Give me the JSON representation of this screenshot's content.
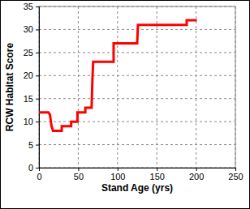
{
  "chart_data": {
    "type": "line",
    "x_label": "Stand Age (yrs)",
    "y_label": "RCW Habitat Score",
    "x": [
      0,
      12,
      14,
      16,
      18,
      29,
      29,
      41,
      41,
      49,
      49,
      59,
      59,
      67,
      68,
      69,
      71,
      95,
      95,
      125,
      126,
      188,
      188,
      201
    ],
    "values": [
      12,
      12,
      11.5,
      9,
      8,
      8,
      9,
      9,
      10,
      10,
      12,
      12,
      13,
      13,
      19,
      23,
      23,
      23,
      27,
      27,
      31,
      31,
      32,
      32
    ],
    "color": "#ff0000",
    "line_style": "solid",
    "xlim": [
      0,
      250
    ],
    "xticks": [
      0,
      50,
      100,
      150,
      200,
      250
    ],
    "ylim": [
      0,
      35
    ],
    "yticks": [
      0,
      5,
      10,
      15,
      20,
      25,
      30,
      35
    ],
    "grid": true
  }
}
